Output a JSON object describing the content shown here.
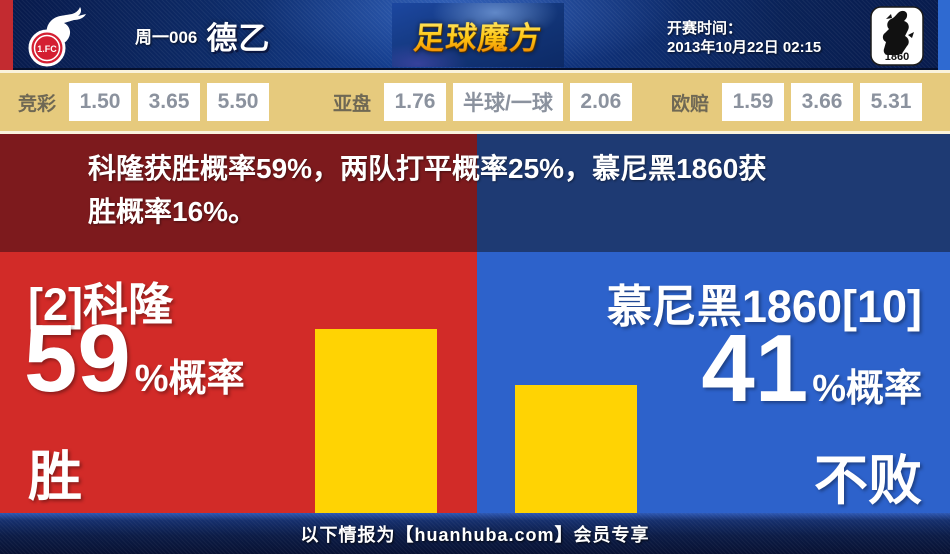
{
  "header": {
    "match_label": "周一006",
    "league": "德乙",
    "site_logo": "足球魔方",
    "kickoff_label": "开赛时间：",
    "kickoff_datetime": "2013年10月22日 02:15",
    "home_badge_text": "1.FC",
    "away_badge_text": "1860"
  },
  "odds": {
    "sections": [
      {
        "label": "竞彩",
        "values": [
          "1.50",
          "3.65",
          "5.50"
        ]
      },
      {
        "label": "亚盘",
        "values": [
          "1.76",
          "半球/一球",
          "2.06"
        ]
      },
      {
        "label": "欧赔",
        "values": [
          "1.59",
          "3.66",
          "5.31"
        ]
      }
    ]
  },
  "summary": {
    "text": "科隆获胜概率59%，两队打平概率25%，慕尼黑1860获\n胜概率16%。"
  },
  "panels": {
    "home": {
      "team": "[2]科隆",
      "value": "59",
      "suffix": "%概率",
      "outcome": "胜"
    },
    "away": {
      "team": "慕尼黑1860[10]",
      "value": "41",
      "suffix": "%概率",
      "outcome": "不败"
    }
  },
  "footer": {
    "text": "以下情报为【huanhuba.com】会员专享"
  },
  "colors": {
    "bright_red": "#d22b28",
    "maroon": "#7d1a1d",
    "bright_blue": "#2d62cb",
    "navy_band": "#1e3a73",
    "bar_yellow": "#ffd303",
    "odds_bg": "#e6ca7d",
    "header_navy": "#0d2a66",
    "logo_gold": "#ffc713",
    "left_strip_red": "#c32b30",
    "right_strip_blue": "#2f6ad1"
  },
  "chart_data": {
    "type": "bar",
    "categories": [
      "科隆 胜",
      "慕尼黑1860 不败"
    ],
    "values": [
      59,
      41
    ],
    "unit": "%",
    "bar_color": "#ffd303",
    "ylim": [
      0,
      100
    ],
    "stated_probabilities": {
      "科隆获胜": 59,
      "两队打平": 25,
      "慕尼黑1860获胜": 16
    },
    "legend_position": "none",
    "grid": false
  }
}
